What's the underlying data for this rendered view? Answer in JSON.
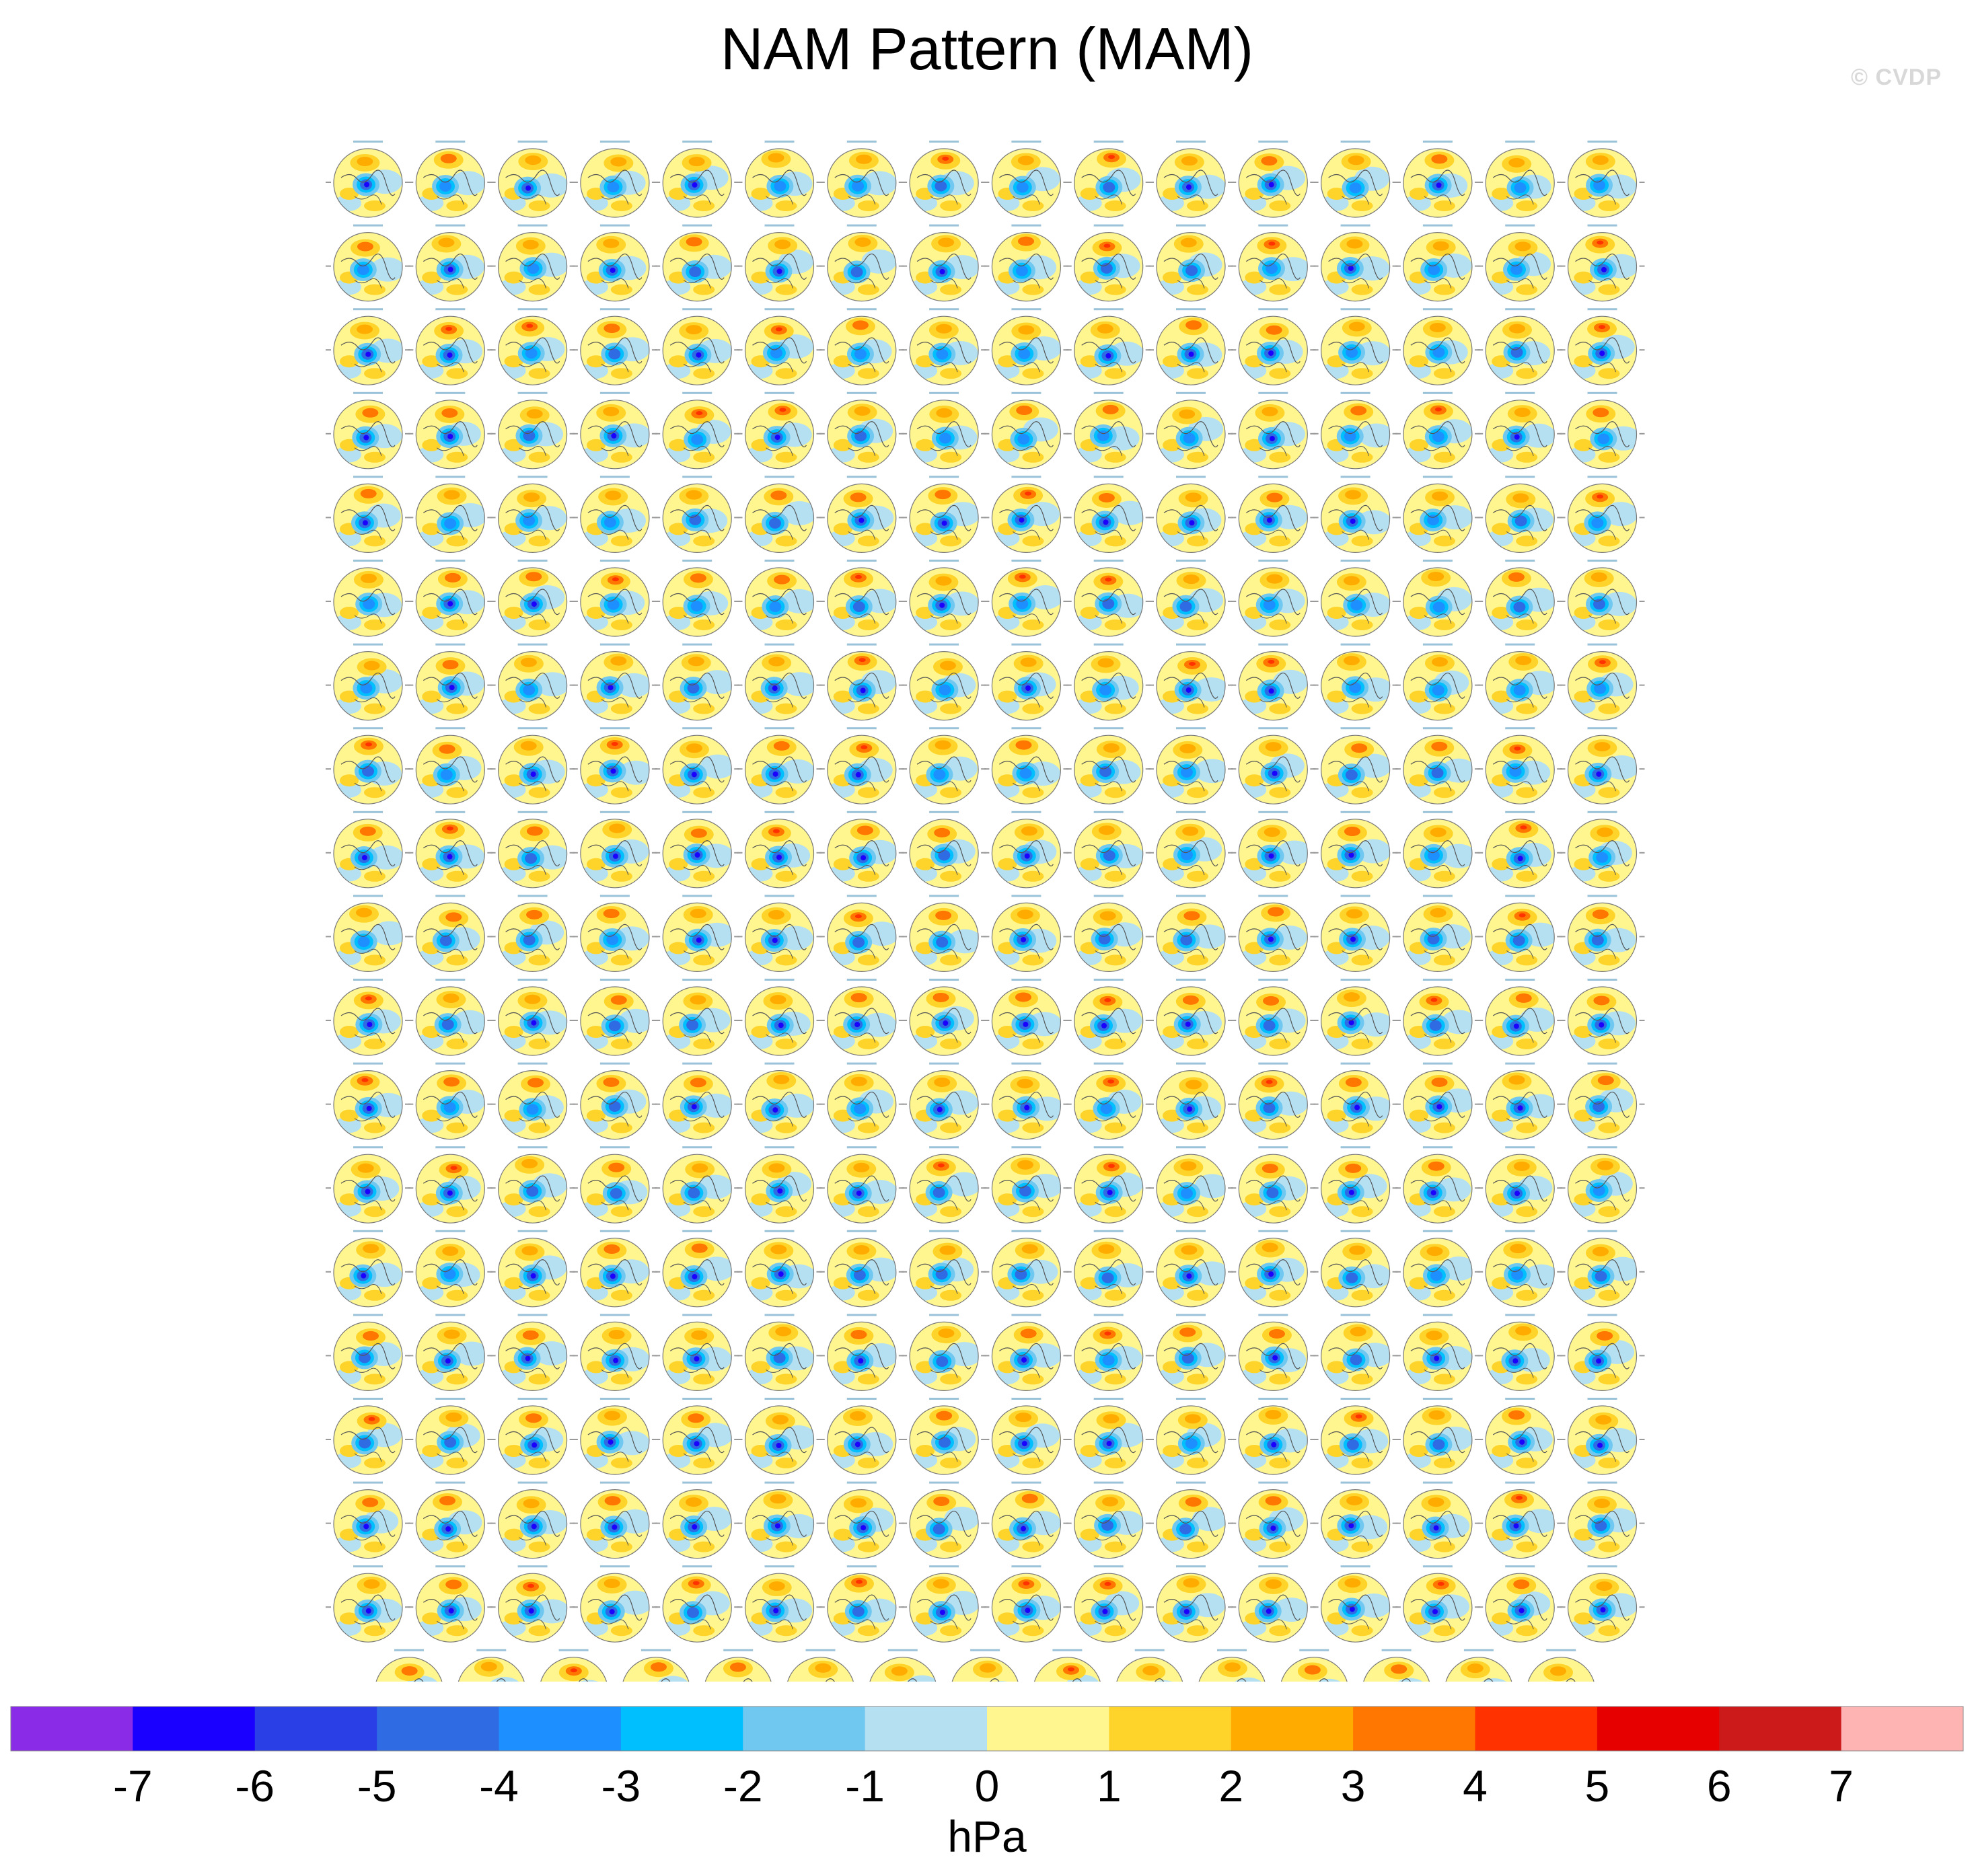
{
  "title": "NAM Pattern (MAM)",
  "watermark": "© CVDP",
  "chart_data": {
    "type": "heatmap",
    "title": "NAM Pattern (MAM)",
    "description_grid": {
      "full_rows": 18,
      "panels_per_full_row": 16,
      "last_row_panels": 15
    },
    "colorbar": {
      "unit_label": "hPa",
      "ticks": [
        -7,
        -6,
        -5,
        -4,
        -3,
        -2,
        -1,
        0,
        1,
        2,
        3,
        4,
        5,
        6,
        7
      ],
      "tick_labels": [
        "-7",
        "-6",
        "-5",
        "-4",
        "-3",
        "-2",
        "-1",
        "0",
        "1",
        "2",
        "3",
        "4",
        "5",
        "6",
        "7"
      ],
      "colors": [
        "#8a2be8",
        "#1a00ff",
        "#2b3fe6",
        "#2f6be3",
        "#1e8fff",
        "#00bfff",
        "#70c8f0",
        "#b5e0f2",
        "#fff68f",
        "#ffd42a",
        "#ffab00",
        "#ff7600",
        "#ff3200",
        "#e60000",
        "#cc1a1a",
        "#ffb4b4"
      ]
    }
  }
}
